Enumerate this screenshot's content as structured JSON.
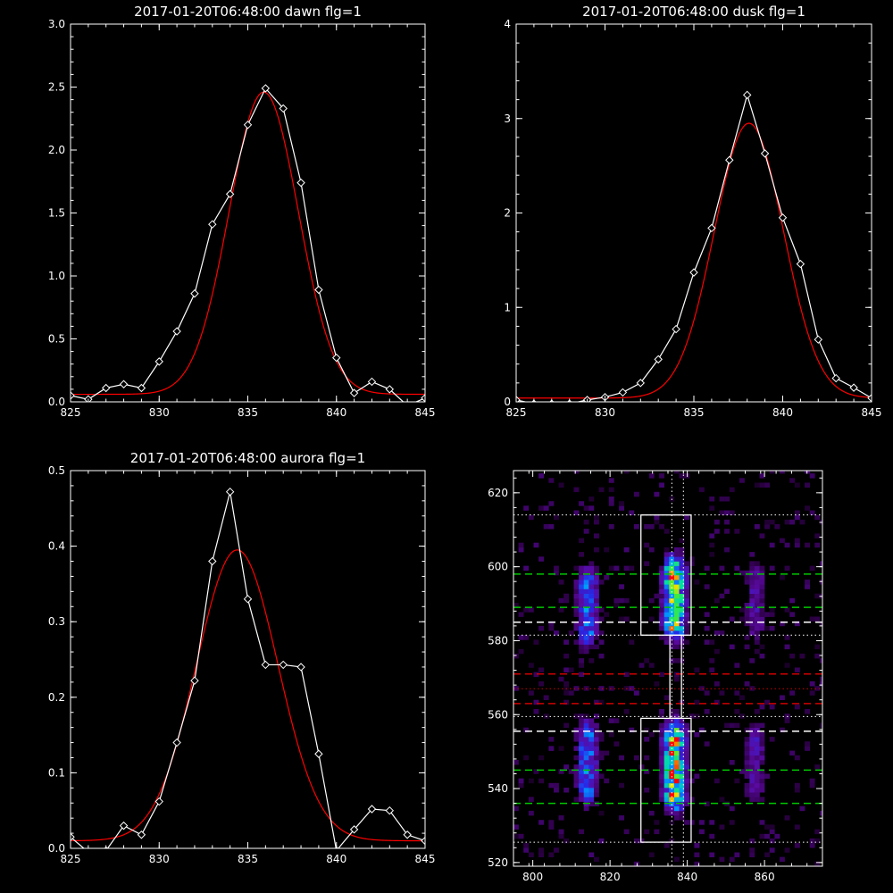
{
  "colors": {
    "background": "#000000",
    "axes": "#ffffff",
    "data_line": "#ffffff",
    "fit_line": "#ff0000",
    "green_line": "#00c800",
    "red_line": "#d00000",
    "white_dash": "#ffffff"
  },
  "chart_data": [
    {
      "id": "dawn",
      "type": "line",
      "title": "2017-01-20T06:48:00 dawn flg=1",
      "xlim": [
        825,
        845
      ],
      "ylim": [
        0,
        3.0
      ],
      "xticks": [
        825,
        830,
        835,
        840,
        845
      ],
      "yticks": [
        0.0,
        0.5,
        1.0,
        1.5,
        2.0,
        2.5,
        3.0
      ],
      "ytick_labels": [
        "0.0",
        "0.5",
        "1.0",
        "1.5",
        "2.0",
        "2.5",
        "3.0"
      ],
      "series": [
        {
          "role": "data",
          "marker": "diamond",
          "x": [
            825,
            826,
            827,
            828,
            829,
            830,
            831,
            832,
            833,
            834,
            835,
            836,
            837,
            838,
            839,
            840,
            841,
            842,
            843,
            844,
            845
          ],
          "y": [
            0.05,
            0.02,
            0.11,
            0.14,
            0.11,
            0.32,
            0.56,
            0.86,
            1.41,
            1.65,
            2.2,
            2.49,
            2.33,
            1.74,
            0.89,
            0.35,
            0.07,
            0.16,
            0.1,
            -0.03,
            0.03
          ]
        },
        {
          "role": "fit",
          "model": "gaussian",
          "amplitude": 2.4,
          "center": 835.9,
          "sigma": 1.95,
          "offset": 0.06
        }
      ]
    },
    {
      "id": "dusk",
      "type": "line",
      "title": "2017-01-20T06:48:00 dusk flg=1",
      "xlim": [
        825,
        845
      ],
      "ylim": [
        0,
        4
      ],
      "xticks": [
        825,
        830,
        835,
        840,
        845
      ],
      "yticks": [
        0,
        1,
        2,
        3,
        4
      ],
      "ytick_labels": [
        "0",
        "1",
        "2",
        "3",
        "4"
      ],
      "series": [
        {
          "role": "data",
          "marker": "diamond",
          "x": [
            825,
            826,
            827,
            828,
            829,
            830,
            831,
            832,
            833,
            834,
            835,
            836,
            837,
            838,
            839,
            840,
            841,
            842,
            843,
            844,
            845
          ],
          "y": [
            0.02,
            -0.02,
            -0.02,
            -0.02,
            0.02,
            0.05,
            0.1,
            0.2,
            0.45,
            0.77,
            1.37,
            1.84,
            2.56,
            3.25,
            2.63,
            1.95,
            1.46,
            0.66,
            0.25,
            0.15,
            0.04
          ]
        },
        {
          "role": "fit",
          "model": "gaussian",
          "amplitude": 2.91,
          "center": 838.1,
          "sigma": 1.95,
          "offset": 0.04
        }
      ]
    },
    {
      "id": "aurora",
      "type": "line",
      "title": "2017-01-20T06:48:00 aurora flg=1",
      "xlim": [
        825,
        845
      ],
      "ylim": [
        0,
        0.5
      ],
      "xticks": [
        825,
        830,
        835,
        840,
        845
      ],
      "yticks": [
        0.0,
        0.1,
        0.2,
        0.3,
        0.4,
        0.5
      ],
      "ytick_labels": [
        "0.0",
        "0.1",
        "0.2",
        "0.3",
        "0.4",
        "0.5"
      ],
      "series": [
        {
          "role": "data",
          "marker": "diamond",
          "x": [
            825,
            826,
            827,
            828,
            829,
            830,
            831,
            832,
            833,
            834,
            835,
            836,
            837,
            838,
            839,
            840,
            841,
            842,
            843,
            844,
            845
          ],
          "y": [
            0.015,
            -0.005,
            -0.003,
            0.03,
            0.018,
            0.062,
            0.14,
            0.222,
            0.38,
            0.472,
            0.33,
            0.243,
            0.243,
            0.24,
            0.125,
            -0.003,
            0.025,
            0.052,
            0.05,
            0.018,
            0.01
          ]
        },
        {
          "role": "fit",
          "model": "gaussian",
          "amplitude": 0.385,
          "center": 834.4,
          "sigma": 2.3,
          "offset": 0.01
        }
      ]
    },
    {
      "id": "image",
      "type": "heatmap",
      "colormap": "rainbow",
      "xlim": [
        795,
        875
      ],
      "ylim": [
        519,
        626
      ],
      "xticks": [
        800,
        820,
        840,
        860
      ],
      "yticks": [
        520,
        540,
        560,
        580,
        600,
        620
      ],
      "emission_columns": [
        {
          "x": 813.5,
          "y_ranges": [
            [
              578,
              599
            ],
            [
              535,
              558
            ]
          ],
          "strength": 0.55
        },
        {
          "x": 836,
          "y_ranges": [
            [
              580,
              602
            ],
            [
              533,
              558
            ]
          ],
          "strength": 1.0
        },
        {
          "x": 857,
          "y_ranges": [
            [
              580,
              600
            ],
            [
              535,
              558
            ]
          ],
          "strength": 0.3
        }
      ],
      "boxes": [
        {
          "x": [
            828,
            841
          ],
          "y": [
            581.5,
            614
          ]
        },
        {
          "x": [
            828,
            841
          ],
          "y": [
            525.5,
            559
          ]
        }
      ],
      "connector_x": [
        835.5,
        838.5
      ],
      "connector_y": [
        559,
        581.5
      ],
      "vertical_dotted_x": [
        836,
        839
      ],
      "hlines": [
        {
          "y": 614,
          "color": "white",
          "style": "dotted"
        },
        {
          "y": 598,
          "color": "green",
          "style": "dashed"
        },
        {
          "y": 589,
          "color": "green",
          "style": "dashed"
        },
        {
          "y": 585,
          "color": "white",
          "style": "dashed"
        },
        {
          "y": 581.5,
          "color": "white",
          "style": "dotted"
        },
        {
          "y": 571,
          "color": "red",
          "style": "dashed"
        },
        {
          "y": 567,
          "color": "red",
          "style": "dotted"
        },
        {
          "y": 563,
          "color": "red",
          "style": "dashed"
        },
        {
          "y": 559.5,
          "color": "white",
          "style": "dotted"
        },
        {
          "y": 555.5,
          "color": "white",
          "style": "dashed"
        },
        {
          "y": 545,
          "color": "green",
          "style": "dashed"
        },
        {
          "y": 536,
          "color": "green",
          "style": "dashed"
        },
        {
          "y": 525.5,
          "color": "white",
          "style": "dotted"
        }
      ]
    }
  ]
}
